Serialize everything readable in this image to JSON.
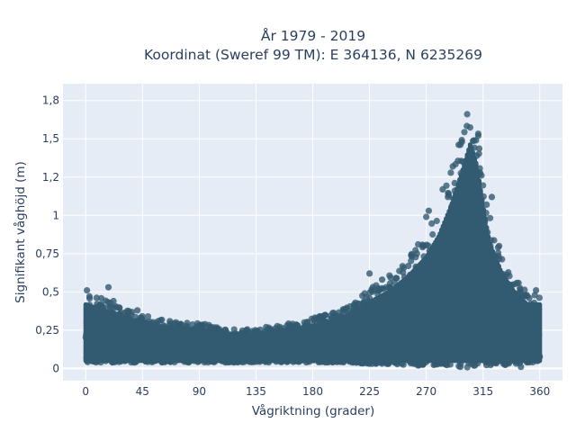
{
  "chart_data": {
    "type": "scatter",
    "title_line1": "År 1979 - 2019",
    "title_line2": "Koordinat (Sweref 99 TM): E 364136, N 6235269",
    "xlabel": "Vågriktning (grader)",
    "ylabel": "Signifikant våghöjd (m)",
    "xlim": [
      -18,
      378
    ],
    "ylim": [
      -0.08,
      1.86
    ],
    "xticks": [
      0,
      45,
      90,
      135,
      180,
      225,
      270,
      315,
      360
    ],
    "xtick_labels": [
      "0",
      "45",
      "90",
      "135",
      "180",
      "225",
      "270",
      "315",
      "360"
    ],
    "yticks": [
      0,
      0.25,
      0.5,
      0.75,
      1,
      1.25,
      1.5,
      1.75
    ],
    "ytick_labels": [
      "0",
      "0,25",
      "0,5",
      "0,75",
      "1",
      "1,2",
      "1,5",
      "1,8"
    ],
    "grid": true,
    "marker_color": "#325a70",
    "background_color": "#e5ecf6",
    "envelope": {
      "direction": [
        0,
        15,
        30,
        45,
        60,
        75,
        90,
        105,
        120,
        135,
        150,
        165,
        180,
        195,
        210,
        225,
        240,
        255,
        270,
        280,
        290,
        300,
        305,
        310,
        315,
        320,
        330,
        340,
        350,
        360
      ],
      "min_height": [
        0.04,
        0.04,
        0.04,
        0.04,
        0.04,
        0.04,
        0.04,
        0.04,
        0.04,
        0.04,
        0.04,
        0.04,
        0.04,
        0.04,
        0.04,
        0.03,
        0.03,
        0.02,
        0.02,
        0.02,
        0.01,
        0.0,
        0.0,
        0.01,
        0.02,
        0.02,
        0.02,
        0.03,
        0.04,
        0.04
      ],
      "max_height": [
        0.5,
        0.45,
        0.4,
        0.35,
        0.32,
        0.3,
        0.3,
        0.27,
        0.26,
        0.26,
        0.28,
        0.3,
        0.33,
        0.36,
        0.42,
        0.52,
        0.6,
        0.72,
        0.88,
        1.05,
        1.3,
        1.62,
        1.79,
        1.62,
        1.3,
        1.0,
        0.75,
        0.6,
        0.5,
        0.5
      ]
    },
    "outlier_points": [
      {
        "x": 1,
        "y": 0.51
      },
      {
        "x": 3,
        "y": 0.47
      },
      {
        "x": 18,
        "y": 0.53
      },
      {
        "x": 22,
        "y": 0.44
      },
      {
        "x": 41,
        "y": 0.38
      },
      {
        "x": 225,
        "y": 0.62
      },
      {
        "x": 235,
        "y": 0.58
      },
      {
        "x": 258,
        "y": 0.74
      },
      {
        "x": 268,
        "y": 0.8
      },
      {
        "x": 270,
        "y": 0.99
      },
      {
        "x": 272,
        "y": 1.03
      },
      {
        "x": 283,
        "y": 1.17
      },
      {
        "x": 291,
        "y": 1.32
      },
      {
        "x": 297,
        "y": 1.46
      },
      {
        "x": 322,
        "y": 1.12
      },
      {
        "x": 340,
        "y": 0.55
      },
      {
        "x": 357,
        "y": 0.51
      },
      {
        "x": 345,
        "y": 0.01
      },
      {
        "x": 297,
        "y": 0.01
      }
    ]
  }
}
